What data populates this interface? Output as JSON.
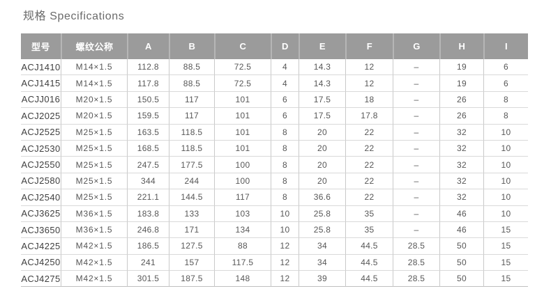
{
  "title": "规格 Specifications",
  "colors": {
    "header_bg": "#9b9b9b",
    "header_text": "#ffffff",
    "header_divider": "#b6b6b6",
    "title_text": "#6a6a6a",
    "row_line": "#d9d9d9",
    "column_line": "#c9c9c9",
    "body_text": "#575757",
    "model_text": "#3f3f3f",
    "page_bg": "#ffffff"
  },
  "table": {
    "columns": [
      "型号",
      "螺纹公称",
      "A",
      "B",
      "C",
      "D",
      "E",
      "F",
      "G",
      "H",
      "I"
    ],
    "rows": [
      [
        "ACJ1410",
        "M14×1.5",
        "112.8",
        "88.5",
        "72.5",
        "4",
        "14.3",
        "12",
        "–",
        "19",
        "6"
      ],
      [
        "ACJ1415",
        "M14×1.5",
        "117.8",
        "88.5",
        "72.5",
        "4",
        "14.3",
        "12",
        "–",
        "19",
        "6"
      ],
      [
        "ACJJ016",
        "M20×1.5",
        "150.5",
        "117",
        "101",
        "6",
        "17.5",
        "18",
        "–",
        "26",
        "8"
      ],
      [
        "ACJ2025",
        "M20×1.5",
        "159.5",
        "117",
        "101",
        "6",
        "17.5",
        "17.8",
        "–",
        "26",
        "8"
      ],
      [
        "ACJ2525",
        "M25×1.5",
        "163.5",
        "118.5",
        "101",
        "8",
        "20",
        "22",
        "–",
        "32",
        "10"
      ],
      [
        "ACJ2530",
        "M25×1.5",
        "168.5",
        "118.5",
        "101",
        "8",
        "20",
        "22",
        "–",
        "32",
        "10"
      ],
      [
        "ACJ2550",
        "M25×1.5",
        "247.5",
        "177.5",
        "100",
        "8",
        "20",
        "22",
        "–",
        "32",
        "10"
      ],
      [
        "ACJ2580",
        "M25×1.5",
        "344",
        "244",
        "100",
        "8",
        "20",
        "22",
        "–",
        "32",
        "10"
      ],
      [
        "ACJ2540",
        "M25×1.5",
        "221.1",
        "144.5",
        "117",
        "8",
        "36.6",
        "22",
        "–",
        "32",
        "10"
      ],
      [
        "ACJ3625",
        "M36×1.5",
        "183.8",
        "133",
        "103",
        "10",
        "25.8",
        "35",
        "–",
        "46",
        "10"
      ],
      [
        "ACJ3650",
        "M36×1.5",
        "246.8",
        "171",
        "134",
        "10",
        "25.8",
        "35",
        "–",
        "46",
        "15"
      ],
      [
        "ACJ4225",
        "M42×1.5",
        "186.5",
        "127.5",
        "88",
        "12",
        "34",
        "44.5",
        "28.5",
        "50",
        "15"
      ],
      [
        "ACJ4250",
        "M42×1.5",
        "241",
        "157",
        "117.5",
        "12",
        "34",
        "44.5",
        "28.5",
        "50",
        "15"
      ],
      [
        "ACJ4275",
        "M42×1.5",
        "301.5",
        "187.5",
        "148",
        "12",
        "39",
        "44.5",
        "28.5",
        "50",
        "15"
      ]
    ]
  }
}
